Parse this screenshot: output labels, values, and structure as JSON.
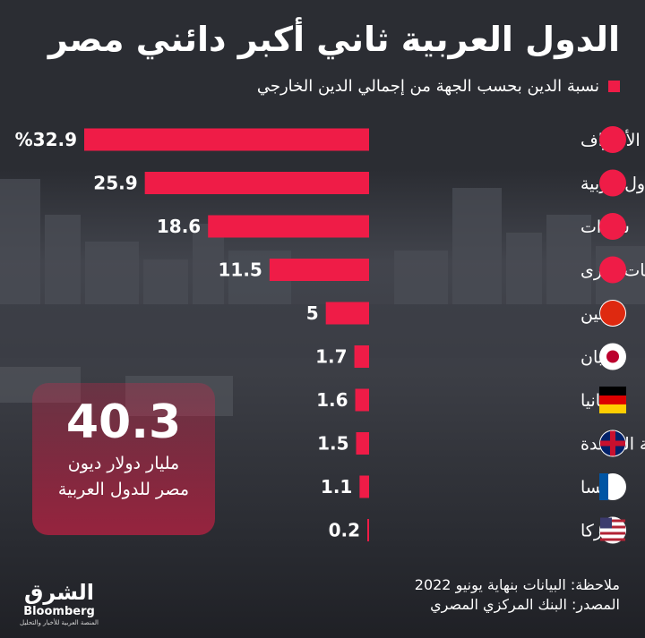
{
  "title": "الدول العربية ثاني أكبر دائني مصر",
  "subtitle": "نسبة الدين بحسب الجهة من إجمالي الدين الخارجي",
  "colors": {
    "bar": "#ef1c47",
    "background": "#2b2d33",
    "text": "#ffffff"
  },
  "chart_data": {
    "type": "bar",
    "orientation": "horizontal",
    "categories": [
      "مؤسسات متعددة الأطراف",
      "دول عربية",
      "سندات",
      "جهات أخرى",
      "الصين",
      "اليابان",
      "ألمانيا",
      "المملكة المتحدة",
      "فرنسا",
      "أميركا"
    ],
    "values": [
      32.9,
      25.9,
      18.6,
      11.5,
      5,
      1.7,
      1.6,
      1.5,
      1.1,
      0.2
    ],
    "value_labels": [
      "%32.9",
      "25.9",
      "18.6",
      "11.5",
      "5",
      "1.7",
      "1.6",
      "1.5",
      "1.1",
      "0.2"
    ],
    "icons": [
      "institution-icon",
      "arab-map-icon",
      "bonds-icon",
      "other-entities-icon",
      "china-flag-icon",
      "japan-flag-icon",
      "germany-flag-icon",
      "uk-flag-icon",
      "france-flag-icon",
      "usa-flag-icon"
    ],
    "xlim": [
      0,
      32.9
    ],
    "legend": "top-right"
  },
  "callout": {
    "number": "40.3",
    "line1": "مليار دولار ديون",
    "line2": "مصر للدول العربية"
  },
  "notes": {
    "note": "ملاحظة: البيانات بنهاية يونيو 2022",
    "source": "المصدر: البنك المركزي المصري"
  },
  "logo": {
    "main": "الشرق",
    "sub": "Bloomberg",
    "tagline": "المنصة العربية للأخبار والتحليل"
  }
}
